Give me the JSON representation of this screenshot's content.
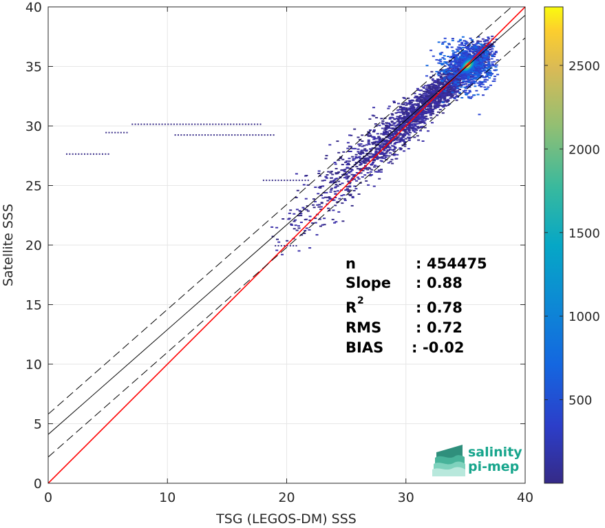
{
  "chart_data": {
    "type": "heatmap",
    "xlabel": "TSG (LEGOS-DM) SSS",
    "ylabel": "Satellite SSS",
    "xlim": [
      0,
      40
    ],
    "ylim": [
      0,
      40
    ],
    "x_ticks": [
      0,
      10,
      20,
      30,
      40
    ],
    "y_ticks": [
      0,
      5,
      10,
      15,
      20,
      25,
      30,
      35,
      40
    ],
    "grid": true,
    "colormap": "parula",
    "colorbar": {
      "range": [
        0,
        2850
      ],
      "ticks": [
        500,
        1000,
        1500,
        2000,
        2500
      ],
      "placement": "right"
    },
    "lines": [
      {
        "role": "identity",
        "color": "#ff0000",
        "style": "solid",
        "slope": 1.0,
        "intercept": 0.0
      },
      {
        "role": "regression",
        "color": "#000000",
        "style": "solid",
        "slope": 0.88,
        "intercept": 4.1
      },
      {
        "role": "regression-upper",
        "color": "#000000",
        "style": "dashed",
        "slope": 0.88,
        "intercept": 5.8
      },
      {
        "role": "regression-lower",
        "color": "#000000",
        "style": "dashed",
        "slope": 0.88,
        "intercept": 2.2
      }
    ],
    "density_core": {
      "x": 35.2,
      "y": 35.1,
      "peak_count": 2800
    },
    "stats": [
      {
        "key": "n",
        "sep": ":",
        "value": "454475"
      },
      {
        "key": "Slope",
        "sep": ":",
        "value": "0.88"
      },
      {
        "key": "R",
        "sup": "2",
        "sep": ":",
        "value": "0.78"
      },
      {
        "key": "RMS",
        "sep": ":",
        "value": "0.72"
      },
      {
        "key": "BIAS",
        "sep": ":",
        "value": "-0.02"
      }
    ]
  },
  "logo": {
    "line1": "salinity",
    "line2": "pi-mep"
  }
}
